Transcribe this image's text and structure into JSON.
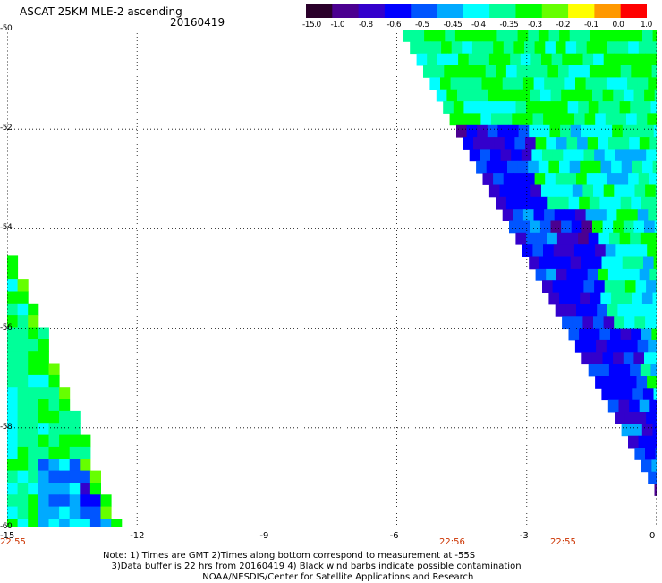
{
  "header": {
    "title": "ASCAT 25KM MLE-2 ascending",
    "date": "20160419"
  },
  "colorbar": {
    "labels": [
      "-15.0",
      "-1.0",
      "-0.8",
      "-0.6",
      "-0.5",
      "-0.45",
      "-0.4",
      "-0.35",
      "-0.3",
      "-0.2",
      "-0.1",
      "0.0",
      "1.0"
    ],
    "colors": [
      "#2a002a",
      "#4b0090",
      "#3300cc",
      "#0000ff",
      "#0055ff",
      "#00aaff",
      "#00ffff",
      "#00ff99",
      "#00ff00",
      "#66ff00",
      "#ffff00",
      "#ff9900",
      "#ff0000"
    ]
  },
  "axes": {
    "x_ticks": [
      "-15",
      "-12",
      "-9",
      "-6",
      "-3",
      "0"
    ],
    "y_ticks": [
      "-50",
      "-52",
      "-54",
      "-56",
      "-58",
      "-60"
    ],
    "xlim": [
      -15,
      0
    ],
    "ylim": [
      -60,
      -50
    ],
    "grid": "dotted"
  },
  "times": [
    "22:55",
    "22:56",
    "22:55"
  ],
  "note": {
    "line1": "Note: 1) Times are GMT 2)Times along bottom correspond to measurement at -55S",
    "line2": "3)Data buffer is 22 hrs from 20160419 4) Black wind barbs indicate possible contamination",
    "line3": "NOAA/NESDIS/Center for Satellite Applications and Research"
  }
}
